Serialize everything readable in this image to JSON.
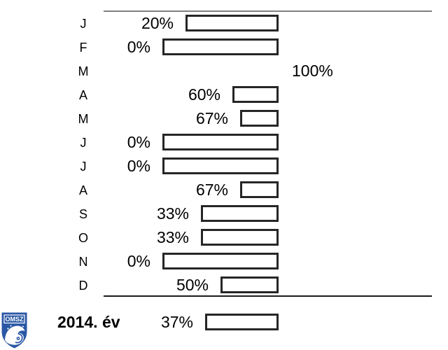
{
  "chart_data": {
    "type": "bar",
    "orientation": "horizontal",
    "title": "",
    "categories": [
      "J",
      "F",
      "M",
      "A",
      "M",
      "J",
      "J",
      "A",
      "S",
      "O",
      "N",
      "D"
    ],
    "values": [
      20,
      0,
      100,
      60,
      67,
      0,
      0,
      67,
      33,
      33,
      0,
      50
    ],
    "value_unit": "%",
    "xlim": [
      0,
      100
    ],
    "bar_encoding": "bars share a fixed right edge and extend leftward with length proportional to (100 - value); the 100% row has no bar and its label sits right of the bar edge",
    "grid": "off",
    "rules": [
      "gray rule above first row",
      "black rule below last row"
    ],
    "summary": {
      "label": "2014. év",
      "value": 37
    }
  },
  "logo": {
    "text": "OMSZ"
  },
  "colors": {
    "background": "#ffffff",
    "text": "#000000",
    "bar_fill": "#ffffff",
    "bar_border": "#262626",
    "top_rule": "#808080",
    "bottom_rule": "#1a1a1a",
    "logo_blue": "#2a57a5"
  }
}
